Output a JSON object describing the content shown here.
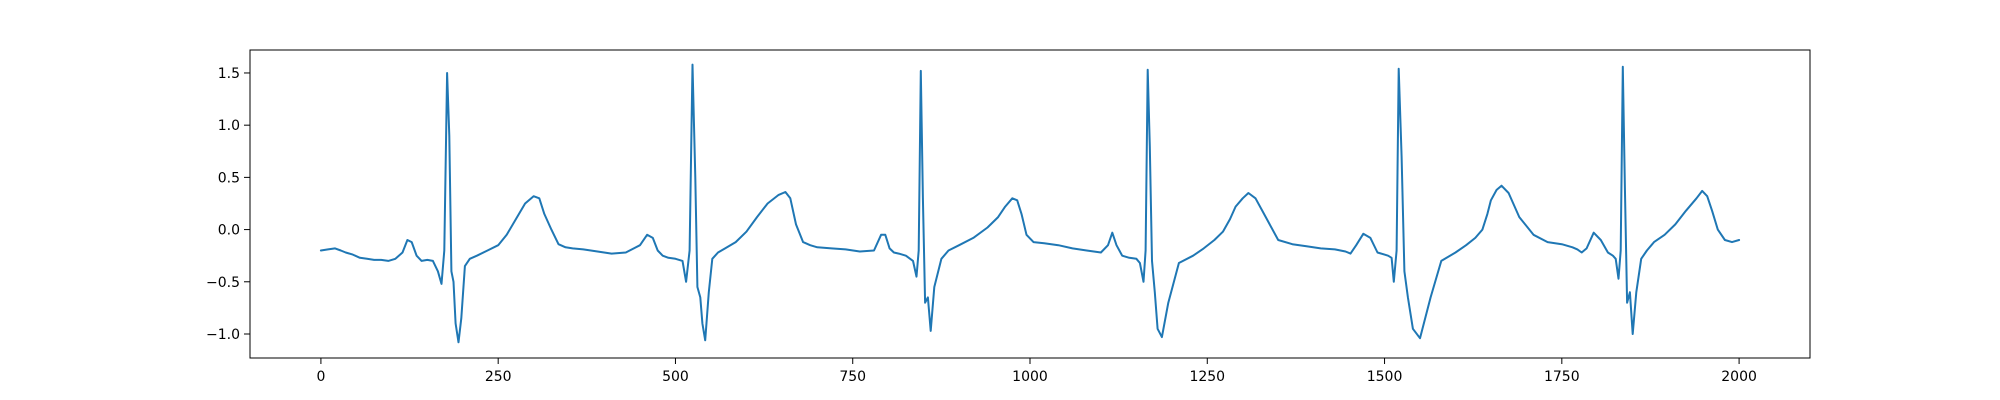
{
  "chart_data": {
    "type": "line",
    "title": "",
    "xlabel": "",
    "ylabel": "",
    "xlim": [
      -100,
      2100
    ],
    "ylim": [
      -1.23,
      1.72
    ],
    "xticks": [
      0,
      250,
      500,
      750,
      1000,
      1250,
      1500,
      1750,
      2000
    ],
    "xtick_labels": [
      "0",
      "250",
      "500",
      "750",
      "1000",
      "1250",
      "1500",
      "1750",
      "2000"
    ],
    "yticks": [
      -1.0,
      -0.5,
      0.0,
      0.5,
      1.0,
      1.5
    ],
    "ytick_labels": [
      "−1.0",
      "−0.5",
      "0.0",
      "0.5",
      "1.0",
      "1.5"
    ],
    "grid": false,
    "colors": {
      "series": "#1f77b4",
      "axes": "#000000"
    },
    "series": [
      {
        "color": "#1f77b4",
        "x": [
          0,
          10,
          20,
          28,
          35,
          45,
          55,
          65,
          75,
          85,
          95,
          105,
          115,
          122,
          128,
          135,
          142,
          150,
          158,
          165,
          170,
          174,
          178,
          181,
          184,
          187,
          190,
          194,
          198,
          203,
          210,
          220,
          235,
          250,
          262,
          275,
          288,
          300,
          308,
          315,
          325,
          335,
          345,
          355,
          370,
          390,
          410,
          430,
          450,
          460,
          468,
          475,
          482,
          490,
          500,
          510,
          515,
          520,
          524,
          528,
          531,
          535,
          538,
          542,
          547,
          552,
          560,
          570,
          585,
          600,
          615,
          630,
          645,
          655,
          662,
          670,
          680,
          690,
          700,
          720,
          740,
          760,
          780,
          790,
          796,
          802,
          808,
          815,
          825,
          835,
          840,
          843,
          846,
          849,
          852,
          856,
          860,
          865,
          875,
          885,
          900,
          920,
          940,
          955,
          965,
          975,
          982,
          988,
          995,
          1005,
          1020,
          1040,
          1060,
          1080,
          1100,
          1110,
          1116,
          1122,
          1130,
          1140,
          1150,
          1155,
          1160,
          1163,
          1166,
          1169,
          1172,
          1176,
          1180,
          1186,
          1195,
          1210,
          1230,
          1245,
          1260,
          1272,
          1282,
          1290,
          1300,
          1308,
          1318,
          1330,
          1350,
          1370,
          1390,
          1410,
          1430,
          1445,
          1452,
          1460,
          1470,
          1480,
          1490,
          1500,
          1505,
          1510,
          1513,
          1517,
          1520,
          1524,
          1528,
          1533,
          1540,
          1550,
          1565,
          1580,
          1600,
          1615,
          1628,
          1638,
          1645,
          1650,
          1658,
          1665,
          1675,
          1690,
          1710,
          1730,
          1750,
          1765,
          1772,
          1778,
          1785,
          1795,
          1805,
          1815,
          1822,
          1826,
          1830,
          1833,
          1836,
          1839,
          1842,
          1846,
          1850,
          1855,
          1862,
          1870,
          1880,
          1895,
          1910,
          1925,
          1940,
          1948,
          1955,
          1962,
          1970,
          1980,
          1990,
          2000
        ],
        "y": [
          -0.2,
          -0.19,
          -0.18,
          -0.2,
          -0.22,
          -0.24,
          -0.27,
          -0.28,
          -0.29,
          -0.29,
          -0.3,
          -0.28,
          -0.22,
          -0.1,
          -0.12,
          -0.25,
          -0.3,
          -0.29,
          -0.3,
          -0.4,
          -0.52,
          -0.2,
          1.5,
          0.9,
          -0.4,
          -0.5,
          -0.9,
          -1.08,
          -0.85,
          -0.35,
          -0.28,
          -0.25,
          -0.2,
          -0.15,
          -0.05,
          0.1,
          0.25,
          0.32,
          0.3,
          0.15,
          0.0,
          -0.14,
          -0.17,
          -0.18,
          -0.19,
          -0.21,
          -0.23,
          -0.22,
          -0.15,
          -0.05,
          -0.08,
          -0.2,
          -0.25,
          -0.27,
          -0.28,
          -0.3,
          -0.5,
          -0.2,
          1.58,
          0.5,
          -0.55,
          -0.65,
          -0.9,
          -1.06,
          -0.6,
          -0.28,
          -0.22,
          -0.18,
          -0.12,
          -0.02,
          0.12,
          0.25,
          0.33,
          0.36,
          0.3,
          0.05,
          -0.12,
          -0.15,
          -0.17,
          -0.18,
          -0.19,
          -0.21,
          -0.2,
          -0.05,
          -0.05,
          -0.18,
          -0.22,
          -0.23,
          -0.25,
          -0.3,
          -0.45,
          -0.2,
          1.52,
          0.3,
          -0.7,
          -0.65,
          -0.97,
          -0.55,
          -0.28,
          -0.2,
          -0.15,
          -0.08,
          0.02,
          0.12,
          0.22,
          0.3,
          0.28,
          0.15,
          -0.05,
          -0.12,
          -0.13,
          -0.15,
          -0.18,
          -0.2,
          -0.22,
          -0.15,
          -0.03,
          -0.15,
          -0.25,
          -0.27,
          -0.28,
          -0.32,
          -0.5,
          -0.2,
          1.53,
          0.8,
          -0.3,
          -0.6,
          -0.95,
          -1.03,
          -0.7,
          -0.32,
          -0.25,
          -0.18,
          -0.1,
          -0.02,
          0.1,
          0.22,
          0.3,
          0.35,
          0.3,
          0.15,
          -0.1,
          -0.14,
          -0.16,
          -0.18,
          -0.19,
          -0.21,
          -0.23,
          -0.15,
          -0.04,
          -0.08,
          -0.22,
          -0.24,
          -0.25,
          -0.27,
          -0.5,
          -0.2,
          1.54,
          0.7,
          -0.4,
          -0.65,
          -0.95,
          -1.04,
          -0.65,
          -0.3,
          -0.22,
          -0.15,
          -0.08,
          0.0,
          0.15,
          0.28,
          0.38,
          0.42,
          0.35,
          0.12,
          -0.05,
          -0.12,
          -0.14,
          -0.17,
          -0.19,
          -0.22,
          -0.18,
          -0.03,
          -0.1,
          -0.22,
          -0.25,
          -0.28,
          -0.47,
          -0.2,
          1.56,
          0.4,
          -0.7,
          -0.6,
          -1.0,
          -0.6,
          -0.28,
          -0.2,
          -0.12,
          -0.05,
          0.05,
          0.18,
          0.3,
          0.37,
          0.32,
          0.18,
          0.0,
          -0.1,
          -0.12,
          -0.1
        ]
      }
    ]
  }
}
